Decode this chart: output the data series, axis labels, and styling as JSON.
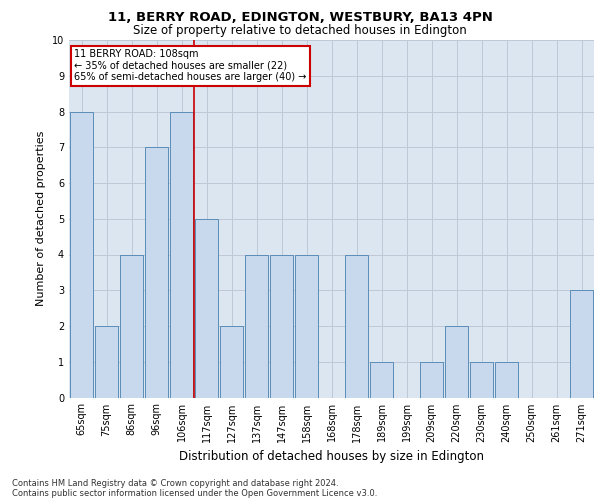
{
  "title1": "11, BERRY ROAD, EDINGTON, WESTBURY, BA13 4PN",
  "title2": "Size of property relative to detached houses in Edington",
  "xlabel": "Distribution of detached houses by size in Edington",
  "ylabel": "Number of detached properties",
  "categories": [
    "65sqm",
    "75sqm",
    "86sqm",
    "96sqm",
    "106sqm",
    "117sqm",
    "127sqm",
    "137sqm",
    "147sqm",
    "158sqm",
    "168sqm",
    "178sqm",
    "189sqm",
    "199sqm",
    "209sqm",
    "220sqm",
    "230sqm",
    "240sqm",
    "250sqm",
    "261sqm",
    "271sqm"
  ],
  "values": [
    8,
    2,
    4,
    7,
    8,
    5,
    2,
    4,
    4,
    4,
    0,
    4,
    1,
    0,
    1,
    2,
    1,
    1,
    0,
    0,
    3
  ],
  "bar_color": "#c9d9ed",
  "bar_edge_color": "#5b8db8",
  "marker_label": "11 BERRY ROAD: 108sqm",
  "annotation_line1": "← 35% of detached houses are smaller (22)",
  "annotation_line2": "65% of semi-detached houses are larger (40) →",
  "vline_color": "#cc0000",
  "vline_x": 4.5,
  "ylim": [
    0,
    10
  ],
  "yticks": [
    0,
    1,
    2,
    3,
    4,
    5,
    6,
    7,
    8,
    9,
    10
  ],
  "grid_color": "#c0c8d8",
  "bg_color": "#dce6f0",
  "footer1": "Contains HM Land Registry data © Crown copyright and database right 2024.",
  "footer2": "Contains public sector information licensed under the Open Government Licence v3.0.",
  "title1_fontsize": 9.5,
  "title2_fontsize": 8.5,
  "ylabel_fontsize": 8,
  "xlabel_fontsize": 8.5,
  "tick_fontsize": 7,
  "annot_fontsize": 7,
  "footer_fontsize": 6
}
